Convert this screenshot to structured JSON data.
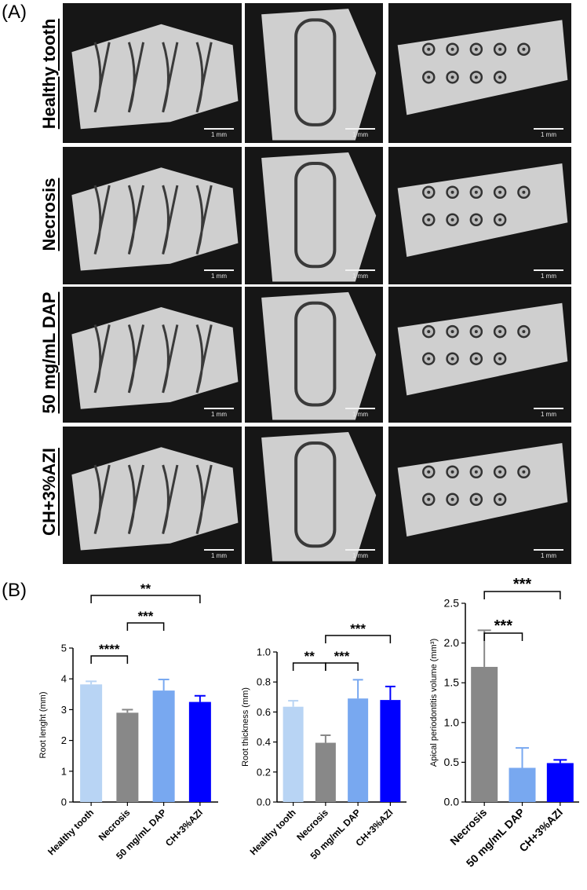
{
  "panel_labels": {
    "a": "(A)",
    "b": "(B)"
  },
  "row_labels": [
    "Healthy tooth",
    "Necrosis",
    "50 mg/mL DAP",
    "CH+3%AZI"
  ],
  "scale_label": "1 mm",
  "colors": {
    "healthy": "#b8d4f4",
    "necrosis": "#888888",
    "dap": "#78a8f0",
    "ch": "#0000ff",
    "image_bg": "#161616",
    "bone": "#cfcfcf"
  },
  "chart_data": [
    {
      "type": "bar",
      "categories": [
        "Healthy tooth",
        "Necrosis",
        "50 mg/mL DAP",
        "CH+3%AZI"
      ],
      "values": [
        3.82,
        2.9,
        3.62,
        3.25
      ],
      "errors": [
        0.1,
        0.1,
        0.36,
        0.2
      ],
      "ylabel": "Root lenght (mm)",
      "ylim": [
        0,
        5
      ],
      "yticks": [
        "0",
        "1",
        "2",
        "3",
        "4",
        "5"
      ],
      "significance": [
        {
          "from": 0,
          "to": 1,
          "label": "****"
        },
        {
          "from": 1,
          "to": 2,
          "label": "***"
        },
        {
          "from": 0,
          "to": 3,
          "label": "**"
        }
      ]
    },
    {
      "type": "bar",
      "categories": [
        "Healthy tooth",
        "Necrosis",
        "50 mg/mL DAP",
        "CH+3%AZI"
      ],
      "values": [
        0.635,
        0.395,
        0.69,
        0.68
      ],
      "errors": [
        0.04,
        0.05,
        0.125,
        0.09
      ],
      "ylabel": "Root thickness (mm)",
      "ylim": [
        0,
        1.0
      ],
      "yticks": [
        "0.0",
        "0.2",
        "0.4",
        "0.6",
        "0.8",
        "1.0"
      ],
      "significance": [
        {
          "from": 0,
          "to": 1,
          "label": "**"
        },
        {
          "from": 1,
          "to": 2,
          "label": "***"
        },
        {
          "from": 1,
          "to": 3,
          "label": "***"
        }
      ]
    },
    {
      "type": "bar",
      "categories": [
        "Necrosis",
        "50 mg/mL DAP",
        "CH+3%AZI"
      ],
      "values": [
        1.7,
        0.43,
        0.49
      ],
      "errors": [
        0.46,
        0.25,
        0.04
      ],
      "ylabel": "Apical periodontitis volume (mm³)",
      "ylim": [
        0,
        2.5
      ],
      "yticks": [
        "0.0",
        "0.5",
        "1.0",
        "1.5",
        "2.0",
        "2.5"
      ],
      "significance": [
        {
          "from": 0,
          "to": 1,
          "label": "***"
        },
        {
          "from": 0,
          "to": 2,
          "label": "***"
        }
      ]
    }
  ]
}
